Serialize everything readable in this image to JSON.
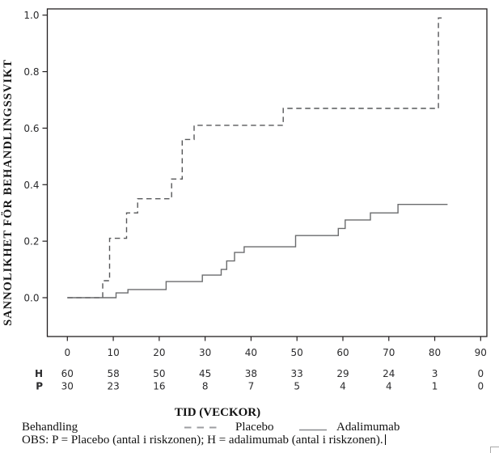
{
  "chart_data": {
    "type": "line",
    "subtype": "kaplan-meier-step",
    "title": "",
    "xlabel": "TID (VECKOR)",
    "ylabel": "SANNOLIKHET FÖR BEHANDLINGSSVIKT",
    "xlim": [
      0,
      90
    ],
    "ylim": [
      0.0,
      1.0
    ],
    "grid": false,
    "legend_position": "bottom",
    "x_ticks": [
      "0",
      "10",
      "20",
      "30",
      "40",
      "50",
      "60",
      "70",
      "80",
      "90"
    ],
    "y_ticks": [
      "0.0",
      "0.2",
      "0.4",
      "0.6",
      "0.8",
      "1.0"
    ],
    "series": [
      {
        "name": "Placebo",
        "line_style": "dashed",
        "color": "#57585a",
        "steps": [
          [
            0,
            0
          ],
          [
            7.7,
            0
          ],
          [
            7.7,
            0.06
          ],
          [
            9.2,
            0.06
          ],
          [
            9.2,
            0.21
          ],
          [
            12.9,
            0.21
          ],
          [
            12.9,
            0.3
          ],
          [
            15.3,
            0.3
          ],
          [
            15.3,
            0.35
          ],
          [
            22.7,
            0.35
          ],
          [
            22.7,
            0.42
          ],
          [
            25,
            0.42
          ],
          [
            25,
            0.56
          ],
          [
            27.6,
            0.56
          ],
          [
            27.6,
            0.61
          ],
          [
            47,
            0.61
          ],
          [
            47,
            0.67
          ],
          [
            80.8,
            0.67
          ],
          [
            80.8,
            0.99
          ],
          [
            81.5,
            0.99
          ]
        ]
      },
      {
        "name": "Adalimumab",
        "line_style": "solid",
        "color": "#6a6b6d",
        "steps": [
          [
            0,
            0
          ],
          [
            10.6,
            0
          ],
          [
            10.6,
            0.017
          ],
          [
            13.2,
            0.017
          ],
          [
            13.2,
            0.029
          ],
          [
            21.5,
            0.029
          ],
          [
            21.5,
            0.057
          ],
          [
            29.4,
            0.057
          ],
          [
            29.4,
            0.08
          ],
          [
            33.5,
            0.08
          ],
          [
            33.5,
            0.1
          ],
          [
            34.7,
            0.1
          ],
          [
            34.7,
            0.13
          ],
          [
            36.4,
            0.13
          ],
          [
            36.4,
            0.16
          ],
          [
            38.5,
            0.16
          ],
          [
            38.5,
            0.18
          ],
          [
            49.7,
            0.18
          ],
          [
            49.7,
            0.22
          ],
          [
            59,
            0.22
          ],
          [
            59,
            0.245
          ],
          [
            60.5,
            0.245
          ],
          [
            60.5,
            0.275
          ],
          [
            66,
            0.275
          ],
          [
            66,
            0.3
          ],
          [
            72,
            0.3
          ],
          [
            72,
            0.33
          ],
          [
            82.8,
            0.33
          ]
        ]
      }
    ],
    "risk_table": {
      "rows": [
        {
          "label": "H",
          "values": [
            "60",
            "58",
            "50",
            "45",
            "38",
            "33",
            "29",
            "24",
            "3",
            "0"
          ]
        },
        {
          "label": "P",
          "values": [
            "30",
            "23",
            "16",
            "8",
            "7",
            "5",
            "4",
            "4",
            "1",
            "0"
          ]
        }
      ]
    }
  },
  "legend": {
    "title": "Behandling",
    "items": [
      {
        "label": "Placebo",
        "line_style": "dashed",
        "sample_color": "#9c9ea1"
      },
      {
        "label": "Adalimumab",
        "line_style": "solid",
        "sample_color": "#8b8d90"
      }
    ]
  },
  "footnote": "OBS: P = Placebo (antal i riskzonen); H = adalimumab (antal i riskzonen)."
}
